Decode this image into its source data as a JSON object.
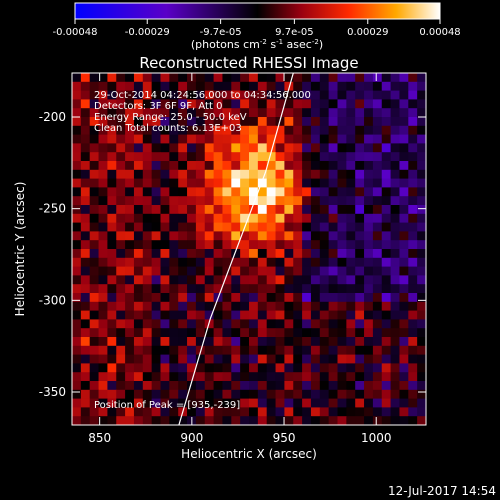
{
  "colorbar": {
    "ticks": [
      "-0.00048",
      "-0.00029",
      "-9.7e-05",
      "9.7e-05",
      "0.00029",
      "0.00048"
    ],
    "unit_main": "(photons cm",
    "unit_exp1": "-2",
    "unit_mid": " s",
    "unit_exp2": "-1",
    "unit_end": " asec",
    "unit_exp3": "-2",
    "unit_close": ")"
  },
  "chart_data": {
    "type": "heatmap",
    "title": "Reconstructed RHESSI Image",
    "xlabel": "Heliocentric X (arcsec)",
    "ylabel": "Heliocentric Y (arcsec)",
    "xlim": [
      835,
      1027
    ],
    "ylim": [
      -368,
      -176
    ],
    "xticks": [
      850,
      900,
      950,
      1000
    ],
    "yticks": [
      -200,
      -250,
      -300,
      -350
    ],
    "colorbar_range": [
      -0.00048,
      0.00048
    ],
    "peak": {
      "x": 935,
      "y": -239
    },
    "limb_arc": [
      [
        955,
        -176
      ],
      [
        940,
        -230
      ],
      [
        925,
        -270
      ],
      [
        910,
        -310
      ],
      [
        893,
        -368
      ]
    ],
    "annotations": {
      "time": "29-Oct-2014 04:24:56.000 to 04:34:56.000",
      "detectors": "Detectors: 3F 6F 9F, Att 0",
      "energy": "Energy Range: 25.0 - 50.0 keV",
      "method": "Clean     Total counts: 6.13E+03",
      "peak_label": "Position of Peak = [935,-239]"
    },
    "timestamp": "12-Jul-2017 14:54"
  }
}
